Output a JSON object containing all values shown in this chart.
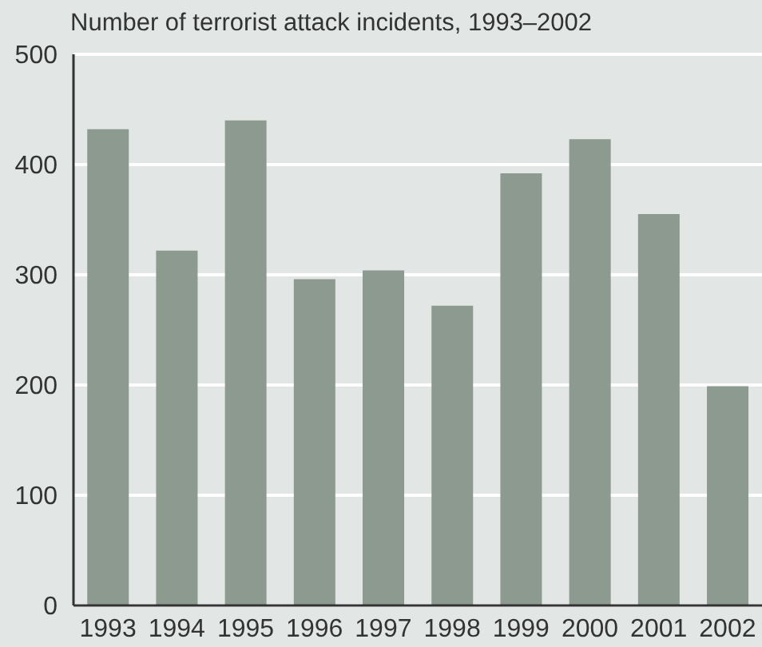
{
  "chart_data": {
    "type": "bar",
    "title": "Number of terrorist attack incidents, 1993–2002",
    "categories": [
      "1993",
      "1994",
      "1995",
      "1996",
      "1997",
      "1998",
      "1999",
      "2000",
      "2001",
      "2002"
    ],
    "values": [
      432,
      322,
      440,
      296,
      304,
      272,
      392,
      423,
      355,
      199
    ],
    "color": "#8c9a90",
    "ylim": [
      0,
      500
    ],
    "yticks": [
      0,
      100,
      200,
      300,
      400,
      500
    ],
    "grid": "y"
  }
}
